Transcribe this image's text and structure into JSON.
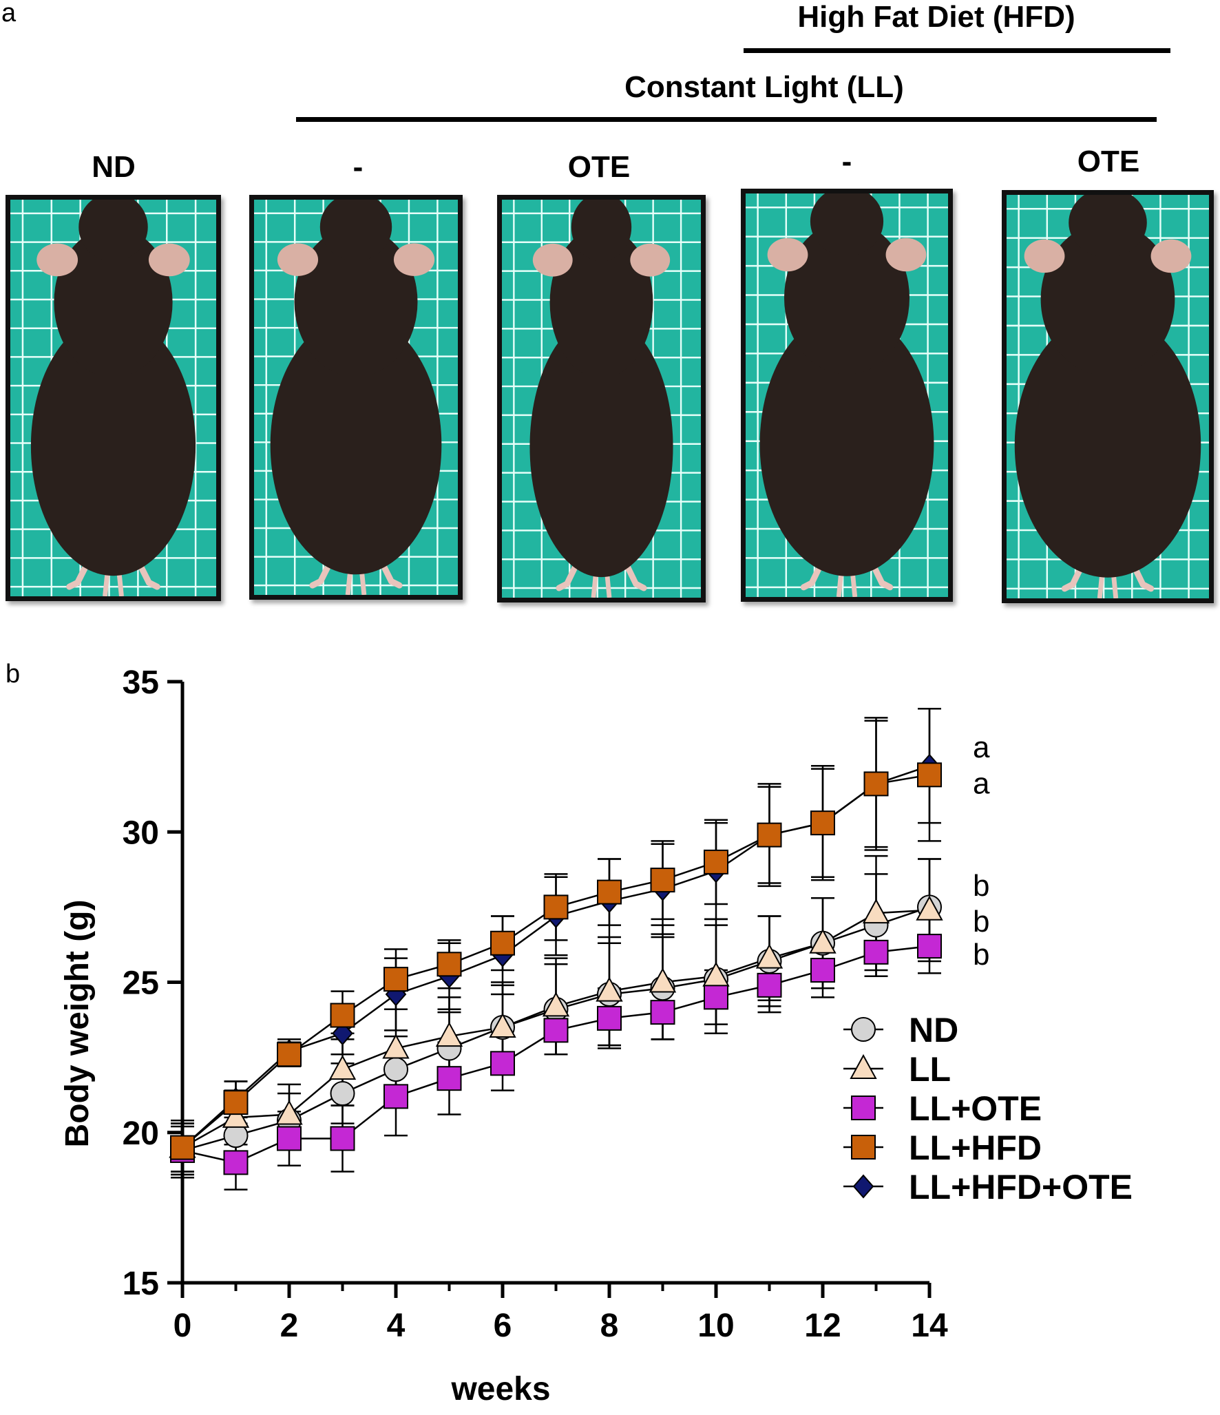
{
  "panel_a": {
    "letter": "a",
    "group_header_top": "High Fat Diet (HFD)",
    "group_header_mid": "Constant Light (LL)",
    "column_labels": [
      "ND",
      "-",
      "OTE",
      "-",
      "OTE"
    ]
  },
  "panel_b": {
    "letter": "b"
  },
  "colors": {
    "ND": "#d4d4d4",
    "LL": "#f8dcc0",
    "LL+OTE": "#c428d4",
    "LL+HFD": "#c8600a",
    "LL+HFD+OTE": "#101870",
    "photo_background": "#22b5a0",
    "mouse_fur": "#2a201c"
  },
  "chart_data": {
    "type": "line",
    "xlabel": "weeks",
    "ylabel": "Body weight (g)",
    "xlim": [
      0,
      14
    ],
    "ylim": [
      15,
      35
    ],
    "xticks": [
      "0",
      "2",
      "4",
      "6",
      "8",
      "10",
      "12",
      "14"
    ],
    "yticks": [
      "15",
      "20",
      "25",
      "30",
      "35"
    ],
    "x": [
      0,
      1,
      2,
      3,
      4,
      5,
      6,
      7,
      8,
      9,
      10,
      11,
      12,
      13,
      14
    ],
    "legend_position": "bottom-right",
    "grid": false,
    "series": [
      {
        "name": "ND",
        "marker": "circle",
        "values": [
          19.4,
          19.9,
          20.4,
          21.3,
          22.1,
          22.8,
          23.5,
          24.1,
          24.6,
          24.8,
          25.1,
          25.7,
          26.3,
          26.9,
          27.5
        ],
        "errors": [
          0.9,
          0.8,
          0.9,
          1.0,
          1.1,
          1.2,
          1.4,
          1.5,
          1.7,
          1.7,
          1.8,
          1.5,
          1.5,
          1.7,
          1.6
        ]
      },
      {
        "name": "LL",
        "marker": "triangle",
        "values": [
          19.5,
          20.5,
          20.6,
          22.1,
          22.8,
          23.2,
          23.5,
          24.2,
          24.7,
          25.0,
          25.2,
          25.8,
          26.3,
          27.3,
          27.4
        ],
        "errors": [
          0.9,
          0.9,
          1.0,
          1.2,
          1.3,
          1.3,
          1.5,
          1.6,
          1.8,
          1.9,
          1.9,
          1.4,
          1.5,
          1.9,
          1.7
        ]
      },
      {
        "name": "LL+OTE",
        "marker": "square",
        "values": [
          19.4,
          19.0,
          19.8,
          19.8,
          21.2,
          21.8,
          22.3,
          23.4,
          23.8,
          24.0,
          24.5,
          24.9,
          25.4,
          26.0,
          26.2
        ],
        "errors": [
          0.8,
          0.9,
          0.9,
          1.1,
          1.3,
          1.2,
          0.9,
          0.8,
          1.0,
          0.9,
          0.9,
          0.9,
          0.9,
          0.8,
          0.9
        ]
      },
      {
        "name": "LL+HFD",
        "marker": "square",
        "values": [
          19.5,
          21.0,
          22.6,
          23.9,
          25.1,
          25.6,
          26.3,
          27.5,
          28.0,
          28.4,
          29.0,
          29.9,
          30.3,
          31.6,
          31.9
        ],
        "errors": [
          0.8,
          0.7,
          0.4,
          0.8,
          1.0,
          0.8,
          0.9,
          1.1,
          1.1,
          1.3,
          1.4,
          1.7,
          1.9,
          2.2,
          2.2
        ]
      },
      {
        "name": "LL+HFD+OTE",
        "marker": "diamond",
        "values": [
          19.5,
          21.1,
          22.7,
          23.3,
          24.6,
          25.2,
          25.9,
          27.2,
          27.7,
          28.1,
          28.7,
          29.9,
          30.3,
          31.6,
          32.2
        ],
        "errors": [
          0.8,
          0.6,
          0.4,
          0.7,
          1.2,
          1.1,
          1.3,
          1.3,
          1.4,
          1.5,
          1.6,
          1.6,
          1.8,
          2.1,
          1.9
        ]
      }
    ],
    "annotations": [
      "a",
      "a",
      "b",
      "b",
      "b"
    ]
  }
}
